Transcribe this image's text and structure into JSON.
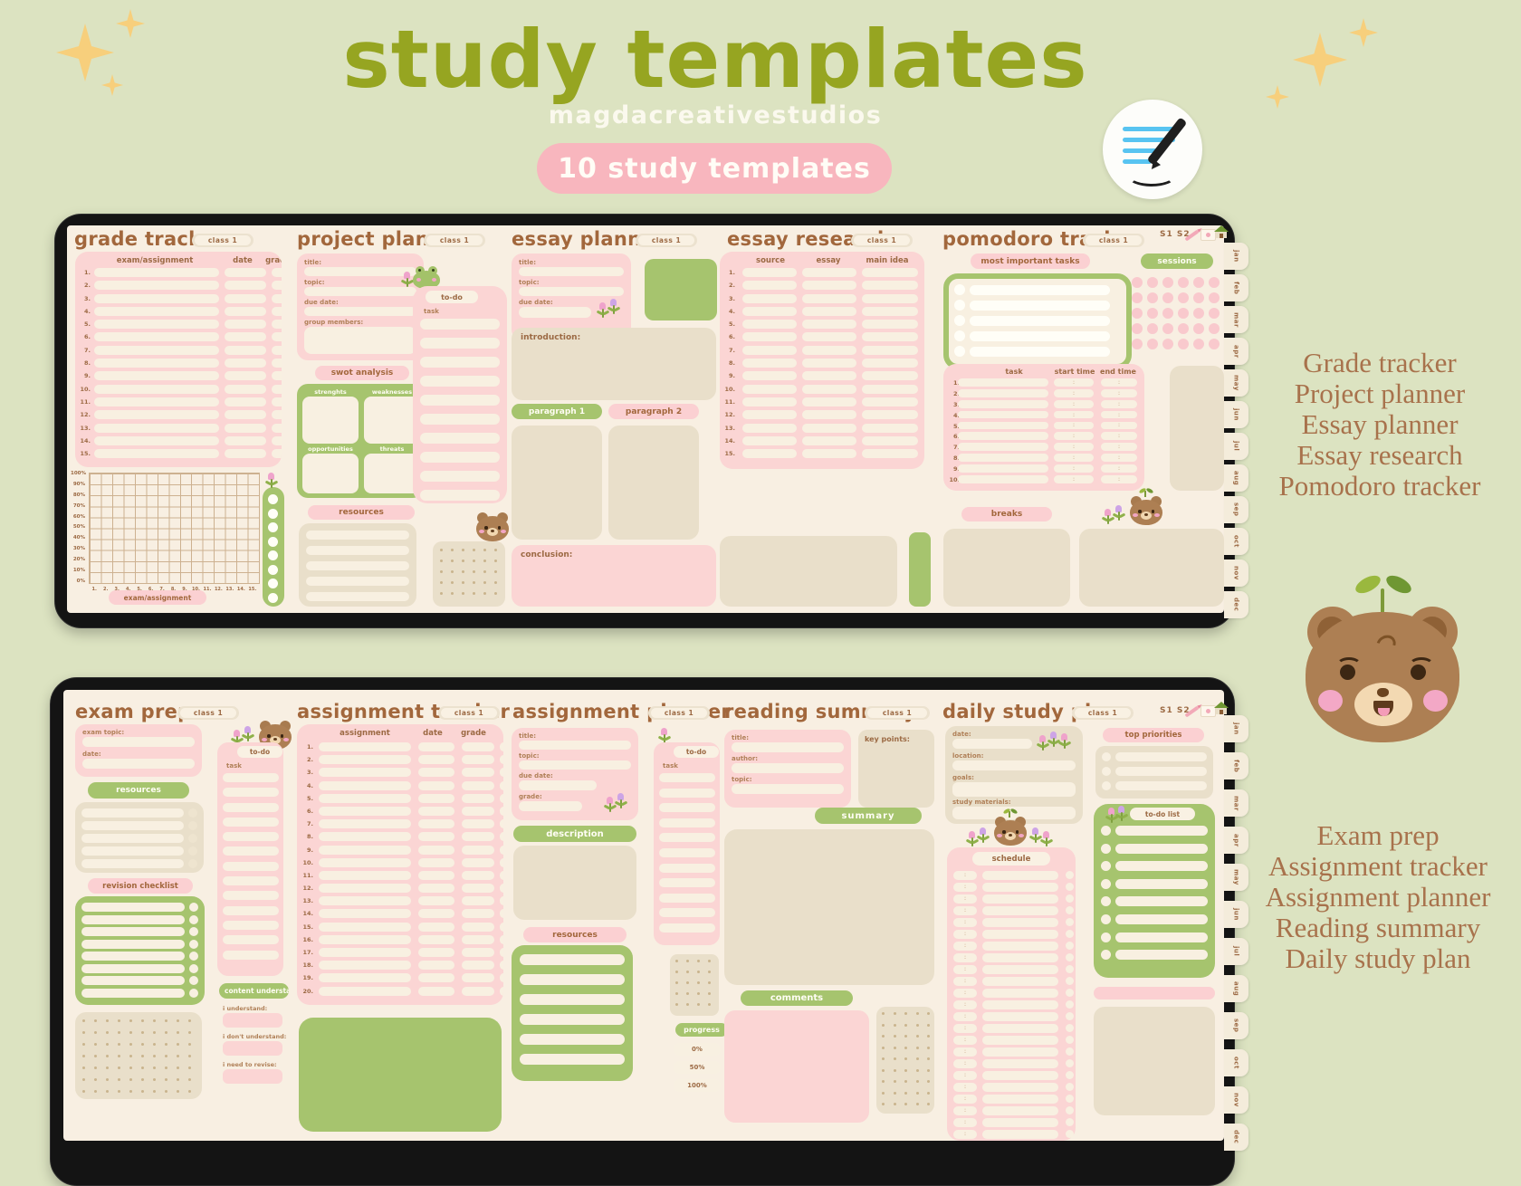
{
  "colors": {
    "background": "#dce3c1",
    "olive_title": "#96a521",
    "badge_pink": "#f8b6be",
    "screen_cream": "#f8efe2",
    "panel_pink": "#fbd5d4",
    "accent_green": "#a6c46e",
    "brown_text": "#a2673c",
    "serif_brown": "#a8724c",
    "tan_panel": "#e9dfca",
    "sessions_dot_pink": "#f9c9cd",
    "sparkle_gold": "#f7cf7c",
    "note_blue": "#58c4f1"
  },
  "header": {
    "title": "study templates",
    "subtitle": "magdacreativestudios",
    "badge": "10 study templates"
  },
  "glyphs": {
    "colon": ":"
  },
  "icons": [
    "sparkle-icon",
    "notes-app-icon",
    "pencil-icon",
    "envelope-icon",
    "home-icon",
    "bear-icon",
    "frog-icon",
    "tulip-icon"
  ],
  "months": [
    "jan",
    "feb",
    "mar",
    "apr",
    "may",
    "jun",
    "jul",
    "aug",
    "sep",
    "oct",
    "nov",
    "dec"
  ],
  "toolbar": {
    "s1": "S1",
    "s2": "S2"
  },
  "class_badge": "class 1",
  "side_lists": {
    "top": [
      "Grade tracker",
      "Project planner",
      "Essay planner",
      "Essay research",
      "Pomodoro tracker"
    ],
    "bottom": [
      "Exam prep",
      "Assignment tracker",
      "Assignment planner",
      "Reading summary",
      "Daily study plan"
    ]
  },
  "templates": {
    "grade_tracker": {
      "title": "grade tracker",
      "columns": [
        "exam/assignment",
        "date",
        "grade"
      ],
      "rows": 15,
      "chart": {
        "y_ticks": [
          "100%",
          "90%",
          "80%",
          "70%",
          "60%",
          "50%",
          "40%",
          "30%",
          "20%",
          "10%",
          "0%"
        ],
        "x_ticks": [
          "1.",
          "2.",
          "3.",
          "4.",
          "5.",
          "6.",
          "7.",
          "8.",
          "9.",
          "10.",
          "11.",
          "12.",
          "13.",
          "14.",
          "15."
        ],
        "caption": "exam/assignment"
      }
    },
    "project_planner": {
      "title": "project planner",
      "fields": [
        "title:",
        "topic:",
        "due date:",
        "group members:"
      ],
      "swot_title": "swot analysis",
      "swot_quadrants": [
        "strenghts",
        "weaknesses",
        "opportunities",
        "threats"
      ],
      "resources_label": "resources",
      "todo_label": "to-do",
      "task_label": "task"
    },
    "essay_planner": {
      "title": "essay planner",
      "fields": [
        "title:",
        "topic:",
        "due date:"
      ],
      "sections": {
        "introduction": "introduction:",
        "paragraph1": "paragraph 1",
        "paragraph2": "paragraph 2",
        "conclusion": "conclusion:"
      }
    },
    "essay_research": {
      "title": "essay research",
      "columns": [
        "source",
        "essay",
        "main idea"
      ],
      "rows": 15
    },
    "pomodoro_tracker": {
      "title": "pomodoro tracker",
      "mit_label": "most important tasks",
      "sessions_label": "sessions",
      "columns": [
        "task",
        "start time",
        "end time"
      ],
      "rows": 10,
      "breaks_label": "breaks"
    },
    "exam_prep": {
      "title": "exam prep",
      "fields": [
        "exam topic:",
        "date:"
      ],
      "resources_label": "resources",
      "revision_label": "revision checklist",
      "todo_label": "to-do",
      "task_label": "task",
      "content_label": "content understanding",
      "content_fields": [
        "i understand:",
        "i don't understand:",
        "i need to revise:"
      ]
    },
    "assignment_tracker": {
      "title": "assignment tracker",
      "columns": [
        "assignment",
        "date",
        "grade"
      ],
      "rows": 20
    },
    "assignment_planner": {
      "title": "assignment planner",
      "fields": [
        "title:",
        "topic:",
        "due date:",
        "grade:"
      ],
      "description_label": "description",
      "resources_label": "resources",
      "todo_label": "to-do",
      "task_label": "task",
      "progress_label": "progress",
      "progress_ticks": [
        "0%",
        "50%",
        "100%"
      ]
    },
    "reading_summary": {
      "title": "reading summary",
      "fields": [
        "title:",
        "author:",
        "topic:"
      ],
      "key_points_label": "key points:",
      "summary_label": "summary",
      "comments_label": "comments"
    },
    "daily_study_plan": {
      "title": "daily study plan",
      "fields": [
        "date:",
        "location:",
        "goals:",
        "study materials:"
      ],
      "top_label": "top priorities",
      "todo_label": "to-do list",
      "schedule_label": "schedule"
    }
  }
}
